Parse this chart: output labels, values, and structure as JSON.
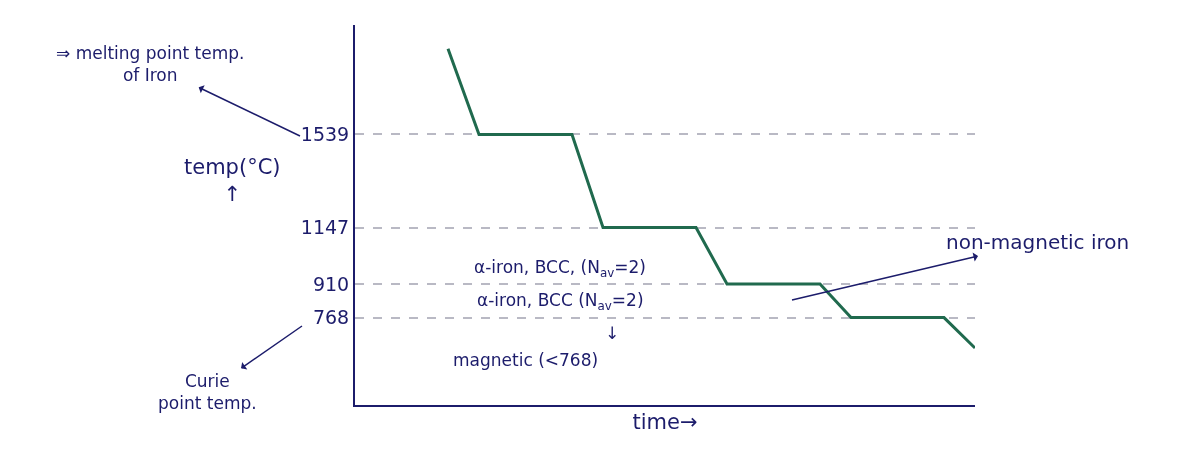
{
  "chart_data": {
    "type": "line",
    "xlabel": "time→",
    "ylabel": "temp(°C)\n↑",
    "categories": [
      null,
      null,
      null,
      null,
      null,
      null,
      null,
      null,
      null,
      null,
      null,
      null,
      null,
      null,
      null,
      null,
      null,
      null,
      null,
      null,
      null
    ],
    "series": [
      {
        "color": "#206a4e",
        "values": [
          null,
          null,
          null,
          1900,
          1539,
          1539,
          1539,
          1539,
          1147,
          1147,
          1147,
          1147,
          910,
          910,
          910,
          910,
          768,
          768,
          768,
          768,
          640
        ]
      }
    ],
    "ylim": [
      400,
      2000
    ],
    "yticks": [
      768,
      910,
      1147,
      1539
    ],
    "grid": "y",
    "line_style": "solid",
    "tick_labels": "y",
    "annotations": [
      "⇒ melting point temp.\nof Iron",
      "Curie\npoint temp.",
      "α-iron, BCC, (N$_{av}$=2)",
      "α-iron, BCC (N$_{av}$=2)",
      "↓",
      "magnetic (<768)",
      "non-magnetic iron"
    ]
  }
}
